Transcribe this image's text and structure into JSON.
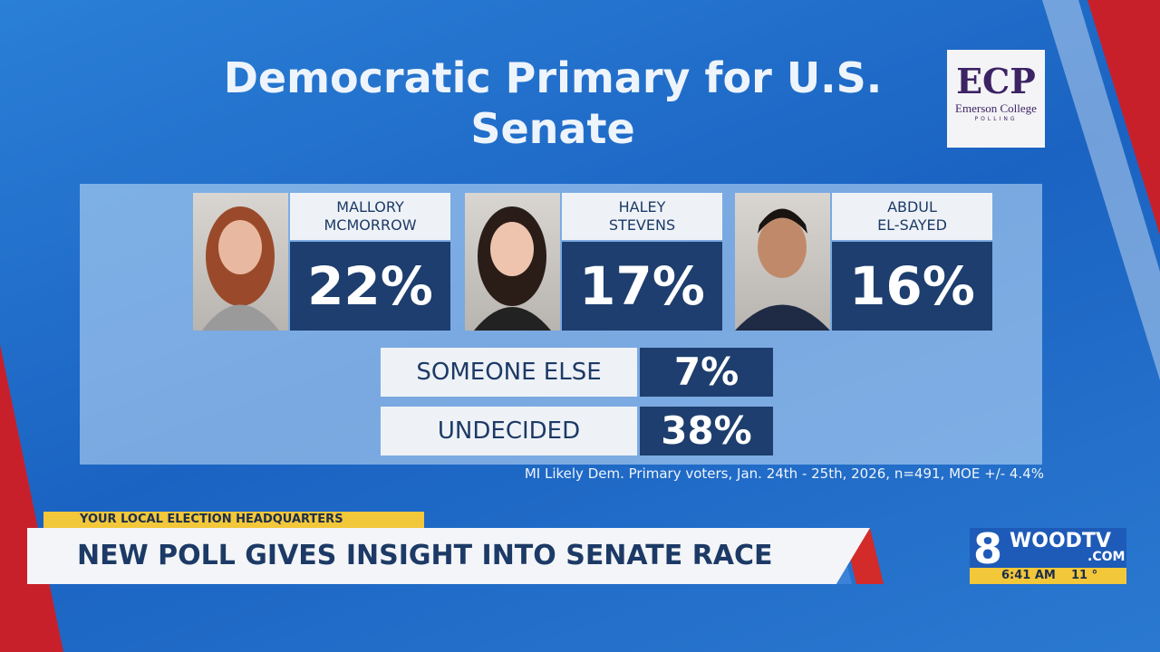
{
  "title": "Democratic Primary for U.S. Senate",
  "logo": {
    "mark": "ECP",
    "name": "Emerson College",
    "sub": "POLLING"
  },
  "candidates": [
    {
      "name": [
        "MALLORY",
        "MCMORROW"
      ],
      "value": "22%"
    },
    {
      "name": [
        "HALEY",
        "STEVENS"
      ],
      "value": "17%"
    },
    {
      "name": [
        "ABDUL",
        "EL-SAYED"
      ],
      "value": "16%"
    }
  ],
  "others": [
    {
      "label": "SOMEONE ELSE",
      "value": "7%"
    },
    {
      "label": "UNDECIDED",
      "value": "38%"
    }
  ],
  "footnote": "MI Likely Dem. Primary voters, Jan. 24th - 25th, 2026, n=491, MOE +/- 4.4%",
  "banner": {
    "kicker": "YOUR LOCAL ELECTION HEADQUARTERS",
    "headline": "NEW POLL GIVES INSIGHT INTO SENATE RACE"
  },
  "station": {
    "number": "8",
    "name": "WOODTV",
    "domain": ".COM",
    "time": "6:41 AM",
    "temp": "11 °"
  }
}
